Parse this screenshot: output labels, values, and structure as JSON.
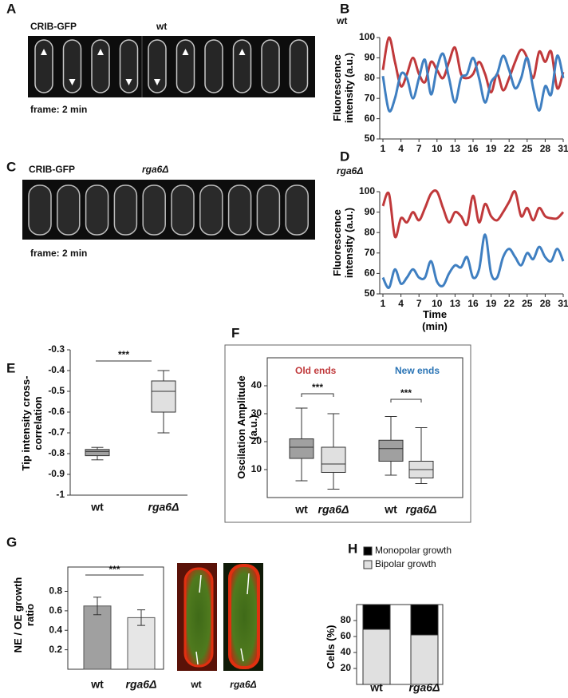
{
  "panel_letters": [
    "A",
    "B",
    "C",
    "D",
    "E",
    "F",
    "G",
    "H"
  ],
  "image_A": {
    "labels": [
      "CRIB-GFP",
      "wt"
    ],
    "caption": "frame: 2 min"
  },
  "image_C": {
    "labels": [
      "CRIB-GFP",
      "rga6Δ"
    ],
    "caption": "frame: 2 min"
  },
  "image_G": {
    "labels": [
      "wt",
      "rga6Δ"
    ]
  },
  "chart_data": [
    {
      "type": "line",
      "title": "wt",
      "ylabel": "Fluorescence intensity (a.u.)",
      "x": [
        1,
        2,
        3,
        4,
        5,
        6,
        7,
        8,
        9,
        10,
        11,
        12,
        13,
        14,
        15,
        16,
        17,
        18,
        19,
        20,
        21,
        22,
        23,
        24,
        25,
        26,
        27,
        28,
        29,
        30,
        31
      ],
      "xlim": [
        1,
        31
      ],
      "xticks": [
        1,
        4,
        7,
        10,
        13,
        16,
        19,
        22,
        25,
        28,
        31
      ],
      "ylim": [
        50,
        100
      ],
      "yticks": [
        50,
        60,
        70,
        80,
        90,
        100
      ],
      "series": [
        {
          "color": "#c0393b",
          "values": [
            84,
            100,
            88,
            76,
            82,
            90,
            82,
            78,
            88,
            84,
            80,
            88,
            95,
            82,
            80,
            82,
            88,
            82,
            73,
            82,
            74,
            80,
            88,
            94,
            90,
            80,
            93,
            88,
            93,
            75,
            83
          ]
        },
        {
          "color": "#3f7fc1",
          "values": [
            81,
            64,
            70,
            82,
            80,
            70,
            80,
            89,
            72,
            85,
            92,
            80,
            68,
            80,
            82,
            90,
            80,
            68,
            78,
            82,
            91,
            84,
            75,
            80,
            90,
            75,
            64,
            76,
            72,
            91,
            80
          ]
        }
      ]
    },
    {
      "type": "line",
      "title": "rga6Δ",
      "ylabel": "Fluorescence intensity (a.u.)",
      "xlabel": "Time (min)",
      "x": [
        1,
        2,
        3,
        4,
        5,
        6,
        7,
        8,
        9,
        10,
        11,
        12,
        13,
        14,
        15,
        16,
        17,
        18,
        19,
        20,
        21,
        22,
        23,
        24,
        25,
        26,
        27,
        28,
        29,
        30,
        31
      ],
      "xlim": [
        1,
        31
      ],
      "xticks": [
        1,
        4,
        7,
        10,
        13,
        16,
        19,
        22,
        25,
        28,
        31
      ],
      "ylim": [
        50,
        100
      ],
      "yticks": [
        50,
        60,
        70,
        80,
        90,
        100
      ],
      "series": [
        {
          "color": "#c0393b",
          "values": [
            93,
            99,
            78,
            87,
            85,
            90,
            86,
            92,
            99,
            100,
            92,
            85,
            90,
            88,
            84,
            98,
            85,
            94,
            88,
            86,
            90,
            95,
            100,
            88,
            92,
            86,
            92,
            88,
            87,
            87,
            90
          ]
        },
        {
          "color": "#3f7fc1",
          "values": [
            58,
            53,
            62,
            55,
            58,
            62,
            58,
            58,
            66,
            56,
            54,
            60,
            64,
            63,
            68,
            58,
            62,
            79,
            60,
            58,
            68,
            72,
            68,
            64,
            70,
            67,
            73,
            68,
            66,
            72,
            66
          ]
        }
      ]
    },
    {
      "type": "box",
      "ylabel": "Tip intensity cross-correlation",
      "categories": [
        "wt",
        "rga6Δ"
      ],
      "boxes": [
        {
          "min": -0.83,
          "q1": -0.81,
          "median": -0.79,
          "q3": -0.78,
          "max": -0.77
        },
        {
          "min": -0.7,
          "q1": -0.6,
          "median": -0.5,
          "q3": -0.45,
          "max": -0.4
        }
      ],
      "colors": [
        "#a0a0a0",
        "#e0e0e0"
      ],
      "ylim": [
        -1,
        -0.3
      ],
      "yticks": [
        -1,
        -0.9,
        -0.8,
        -0.7,
        -0.6,
        -0.5,
        -0.4,
        -0.3
      ],
      "annotations": [
        "***"
      ]
    },
    {
      "type": "box",
      "ylabel": "Oscilation Amplitude (a.u.)",
      "categories": [
        "wt",
        "rga6Δ",
        "wt",
        "rga6Δ"
      ],
      "groups": [
        {
          "label": "Old ends",
          "color": "#c0393b"
        },
        {
          "label": "New ends",
          "color": "#2a74b5"
        }
      ],
      "boxes": [
        {
          "min": 6,
          "q1": 14,
          "median": 18,
          "q3": 21,
          "max": 32
        },
        {
          "min": 3,
          "q1": 9,
          "median": 12,
          "q3": 18,
          "max": 30
        },
        {
          "min": 8,
          "q1": 13,
          "median": 17.5,
          "q3": 20.5,
          "max": 29
        },
        {
          "min": 5,
          "q1": 7,
          "median": 10,
          "q3": 13,
          "max": 25
        }
      ],
      "colors": [
        "#a0a0a0",
        "#e0e0e0",
        "#a0a0a0",
        "#e0e0e0"
      ],
      "ylim": [
        0,
        50
      ],
      "yticks": [
        10,
        20,
        30,
        40
      ],
      "annotations": [
        "***",
        "***"
      ]
    },
    {
      "type": "bar",
      "ylabel": "NE / OE growth ratio",
      "categories": [
        "wt",
        "rga6Δ"
      ],
      "values": [
        0.65,
        0.53
      ],
      "errors": [
        0.09,
        0.08
      ],
      "colors": [
        "#a0a0a0",
        "#e6e6e6"
      ],
      "ylim": [
        0,
        1.05
      ],
      "yticks": [
        0.2,
        0.4,
        0.6,
        0.8
      ],
      "annotations": [
        "***"
      ]
    },
    {
      "type": "stacked_bar",
      "ylabel": "Cells (%)",
      "categories": [
        "wt",
        "rga6Δ"
      ],
      "series": [
        {
          "name": "Monopolar growth",
          "color": "#000000",
          "values": [
            31,
            38
          ]
        },
        {
          "name": "Bipolar growth",
          "color": "#e0e0e0",
          "values": [
            69,
            62
          ]
        }
      ],
      "ylim": [
        0,
        100
      ],
      "yticks": [
        20,
        40,
        60,
        80
      ]
    }
  ]
}
